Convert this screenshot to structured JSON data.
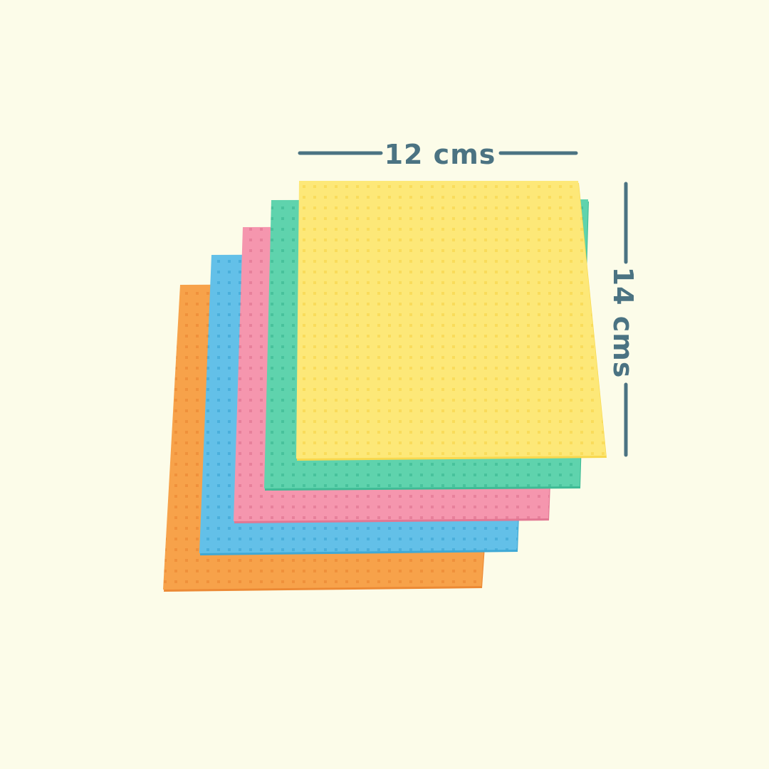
{
  "dimensions": {
    "width_label": "12 cms",
    "height_label": "14 cms",
    "color": "#4b7382"
  },
  "product": {
    "cloths": [
      {
        "color_name": "orange",
        "color": "#f7a24a",
        "dot": "#ec8a35"
      },
      {
        "color_name": "blue",
        "color": "#63c0e8",
        "dot": "#3fa9d6"
      },
      {
        "color_name": "pink",
        "color": "#f596ae",
        "dot": "#e27793"
      },
      {
        "color_name": "green",
        "color": "#5fd3ad",
        "dot": "#3fbb95"
      },
      {
        "color_name": "yellow",
        "color": "#fde878",
        "dot": "#f8d84e"
      }
    ]
  },
  "background": "#fcfce9"
}
